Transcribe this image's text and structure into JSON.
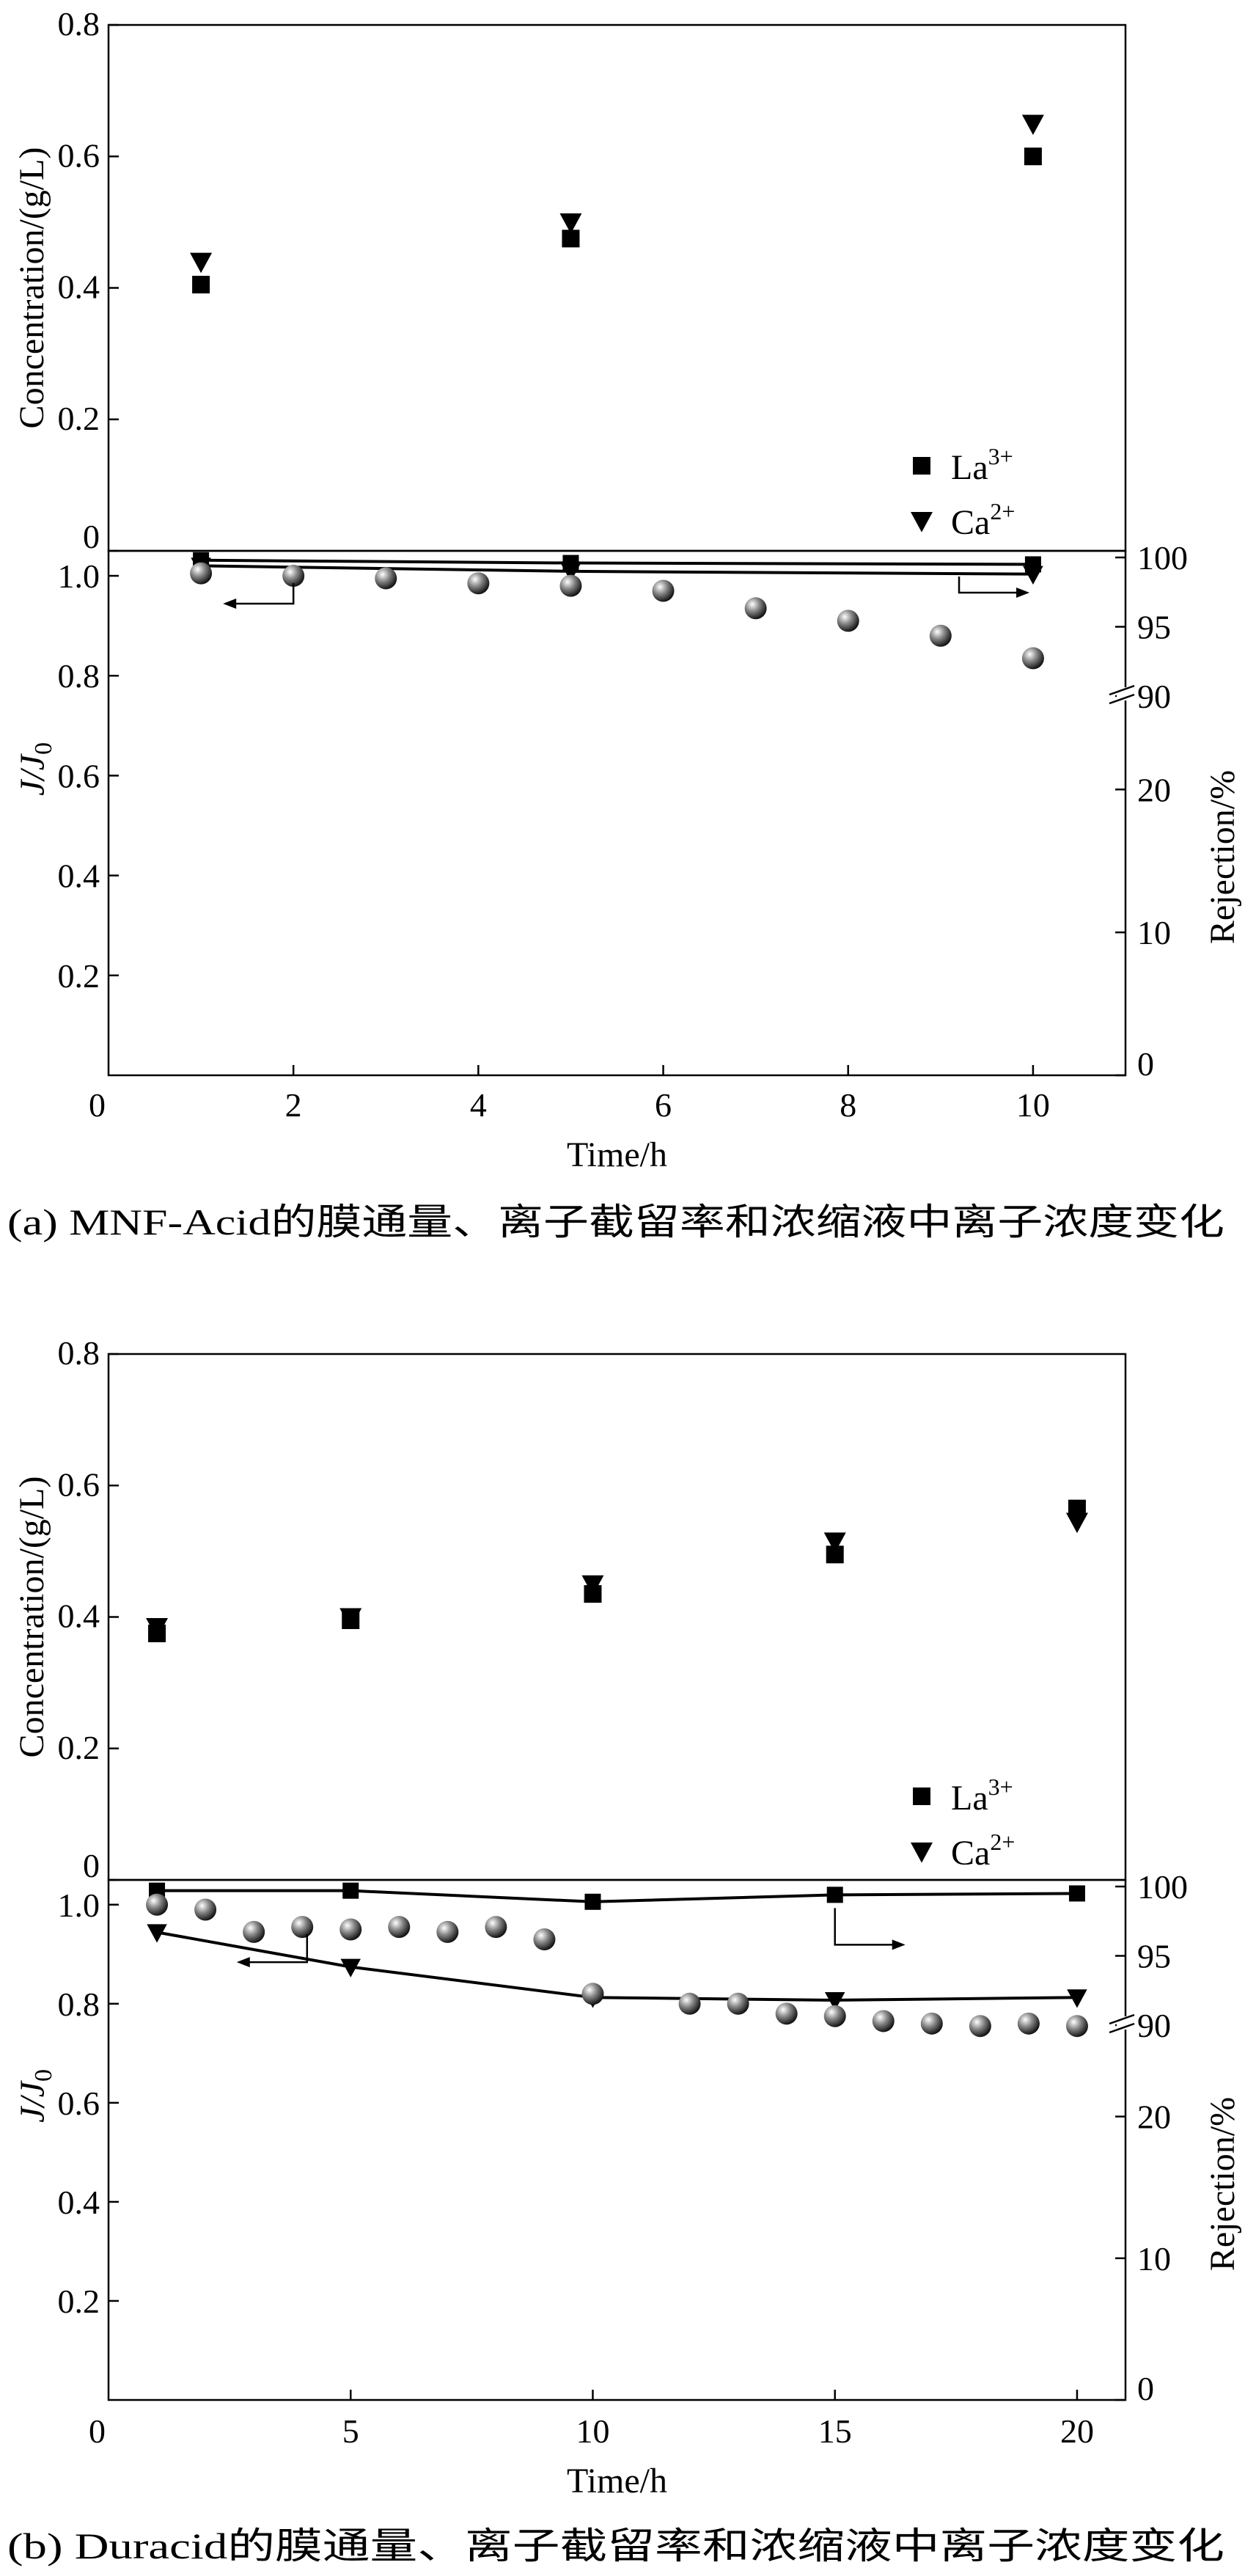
{
  "chart_data": [
    {
      "panel": "a",
      "type": "scatter",
      "caption": "(a) MNF-Acid的膜通量、离子截留率和浓缩液中离子浓度变化",
      "xlabel": "Time/h",
      "xlim": [
        0,
        11
      ],
      "xticks": [
        0,
        2,
        4,
        6,
        8,
        10
      ],
      "top": {
        "ylabel": "Concentration/(g/L)",
        "ylim": [
          0,
          0.8
        ],
        "yticks": [
          0,
          0.2,
          0.4,
          0.6,
          0.8
        ],
        "series": [
          {
            "name": "La3+",
            "marker": "square",
            "x": [
              1,
              5,
              10
            ],
            "y": [
              0.405,
              0.475,
              0.6
            ]
          },
          {
            "name": "Ca2+",
            "marker": "triangle-down",
            "x": [
              1,
              5,
              10
            ],
            "y": [
              0.44,
              0.5,
              0.65
            ]
          }
        ],
        "legend": [
          {
            "text": "La",
            "sup": "3+",
            "marker": "square"
          },
          {
            "text": "Ca",
            "sup": "2+",
            "marker": "triangle-down"
          }
        ]
      },
      "bottom": {
        "ylabel_left": {
          "main": "J/J",
          "sub": "0"
        },
        "ylabel_right": "Rejection/%",
        "left_ylim": [
          0,
          1.05
        ],
        "left_yticks": [
          "0.2",
          "0.4",
          "0.6",
          "0.8",
          "1.0"
        ],
        "right_ticks_lower": [
          "0",
          "10",
          "20"
        ],
        "right_ticks_upper": [
          "90",
          "95",
          "100"
        ],
        "flux": {
          "x": [
            1,
            2,
            3,
            4,
            5,
            6,
            7,
            8,
            9,
            10
          ],
          "y": [
            1.005,
            1.0,
            0.995,
            0.985,
            0.98,
            0.97,
            0.935,
            0.91,
            0.88,
            0.835
          ]
        },
        "rejection": [
          {
            "name": "La3+",
            "marker": "square",
            "x": [
              1,
              5,
              10
            ],
            "y": [
              99.8,
              99.6,
              99.5
            ]
          },
          {
            "name": "Ca2+",
            "marker": "triangle-down",
            "x": [
              1,
              5,
              10
            ],
            "y": [
              99.4,
              99.0,
              98.8
            ]
          }
        ]
      }
    },
    {
      "panel": "b",
      "type": "scatter",
      "caption": "(b) Duracid的膜通量、离子截留率和浓缩液中离子浓度变化",
      "xlabel": "Time/h",
      "xlim": [
        0,
        21
      ],
      "xticks": [
        0,
        5,
        10,
        15,
        20
      ],
      "top": {
        "ylabel": "Concentration/(g/L)",
        "ylim": [
          0,
          0.8
        ],
        "yticks": [
          0,
          0.2,
          0.4,
          0.6,
          0.8
        ],
        "series": [
          {
            "name": "La3+",
            "marker": "square",
            "x": [
              1,
              5,
              10,
              15,
              20
            ],
            "y": [
              0.375,
              0.395,
              0.435,
              0.495,
              0.565
            ]
          },
          {
            "name": "Ca2+",
            "marker": "triangle-down",
            "x": [
              1,
              5,
              10,
              15,
              20
            ],
            "y": [
              0.385,
              0.4,
              0.45,
              0.515,
              0.545
            ]
          }
        ],
        "legend": [
          {
            "text": "La",
            "sup": "3+",
            "marker": "square"
          },
          {
            "text": "Ca",
            "sup": "2+",
            "marker": "triangle-down"
          }
        ]
      },
      "bottom": {
        "ylabel_left": {
          "main": "J/J",
          "sub": "0"
        },
        "ylabel_right": "Rejection/%",
        "left_ylim": [
          0,
          1.05
        ],
        "left_yticks": [
          "0.2",
          "0.4",
          "0.6",
          "0.8",
          "1.0"
        ],
        "right_ticks_lower": [
          "0",
          "10",
          "20"
        ],
        "right_ticks_upper": [
          "90",
          "95",
          "100"
        ],
        "flux": {
          "x": [
            1,
            2,
            3,
            4,
            5,
            6,
            7,
            8,
            9,
            10,
            12,
            13,
            14,
            15,
            16,
            17,
            18,
            19,
            20
          ],
          "y": [
            1.0,
            0.99,
            0.945,
            0.955,
            0.95,
            0.955,
            0.945,
            0.955,
            0.93,
            0.82,
            0.8,
            0.8,
            0.78,
            0.775,
            0.765,
            0.76,
            0.755,
            0.76,
            0.755
          ]
        },
        "rejection": [
          {
            "name": "La3+",
            "marker": "square",
            "x": [
              1,
              5,
              10,
              15,
              20
            ],
            "y": [
              99.7,
              99.7,
              98.9,
              99.4,
              99.5
            ]
          },
          {
            "name": "Ca2+",
            "marker": "triangle-down",
            "x": [
              1,
              5,
              10,
              15,
              20
            ],
            "y": [
              96.7,
              94.2,
              92.0,
              91.8,
              92.0
            ]
          }
        ]
      }
    }
  ]
}
